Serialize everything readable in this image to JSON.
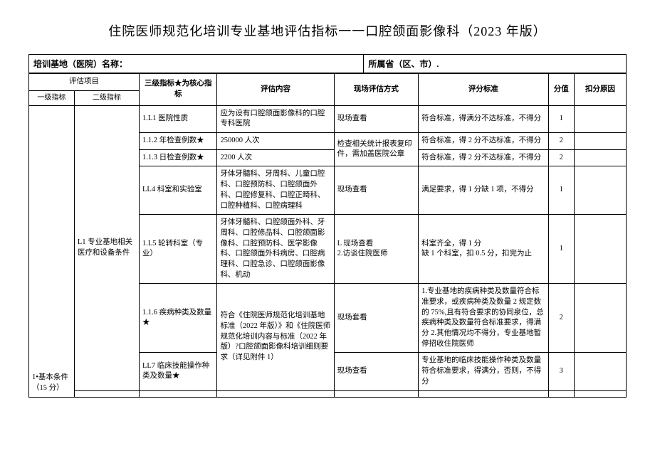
{
  "title": "住院医师规范化培训专业基地评估指标一一口腔颌面影像科（2023 年版）",
  "header": {
    "left_label": "培训基地（医院）名称：",
    "right_label": "所属省（区、市）."
  },
  "columns": {
    "eval_item": "评估项目",
    "l1": "一级指标",
    "l2": "二级指标",
    "l3": "三级指标★为核心指标",
    "content": "评估内容",
    "method": "现场评估方式",
    "criteria": "评分标准",
    "score": "分值",
    "reason": "扣分原因"
  },
  "l1": {
    "label": "1•基本条件（15 分）"
  },
  "l2": {
    "label": "L1 专业基地相关医疗和设备条件"
  },
  "rows": [
    {
      "l3": "1.L1 医院性质",
      "content": "应为设有口腔颌面影像科的口腔专科医院",
      "method": "现场查看",
      "criteria": "符合标准，得满分不达标准，不得分",
      "score": "1"
    },
    {
      "l3": "1.1.2 年检查例数★",
      "content": "250000 人次",
      "method_merged": "检查相关统计报表复印件，需加盖医院公章",
      "criteria": "符合标准，得 2 分不达标准，不得分",
      "score": "2"
    },
    {
      "l3": "1.1.3 日检查例数★",
      "content": "2200 人次",
      "criteria": "符合标准，得 2 分不达标准，不得分",
      "score": "2"
    },
    {
      "l3": "LL4 科室和实验室",
      "content": "牙体牙髓科、牙周科、儿童口腔科、口腔预防科、口腔颌面外科、口腔修复科、口腔正畸科、口腔种植科、口腔病理科",
      "method": "现场查看",
      "criteria": "满足要求，得 1 分缺 1 项，不得分",
      "score": "1"
    },
    {
      "l3": "1.L5 轮转科室（专业）",
      "content": "牙体牙髓科、口腔颌面外科、牙周科、口腔修品科、口腔颌面影像科、口腔预防科、医学影像科、口腔颌面外科病房、口腔病理科、口腔急诊、口腔颌面影像科、机动",
      "method": "L 现场查看\n2.访谈住院医师",
      "criteria": "科室齐全，得 1 分\n缺 1 个科室，扣 0.5 分，扣完为止",
      "score": "1"
    },
    {
      "l3": "1.1.6 疾病种类及数量★",
      "content_merged": "符合《住院医师规范化培训基地标准（2022 年版）》和《住院医师规范化培训内容与标准（2022 年版）?口腔颌面影像科培训细则要求（详见附件 1）",
      "method": "现场套看",
      "criteria": "1.专业基地的疾病种类及数量符合标准要求，或疾病种类及数量 2 规定数的 75%,且有符合要求的协同泉位，总疾病种类及数量符合标准要求，得满分 2.其他情况均不得分，专业基地暂停招收住院医师",
      "score": "2"
    },
    {
      "l3": "LL7 临床技能操作种类及数量★",
      "method": "现场查看",
      "criteria": "专业基地的临床技能操作种类及数量符合标准要求，得满分，否则，不得分",
      "score": "3"
    }
  ]
}
